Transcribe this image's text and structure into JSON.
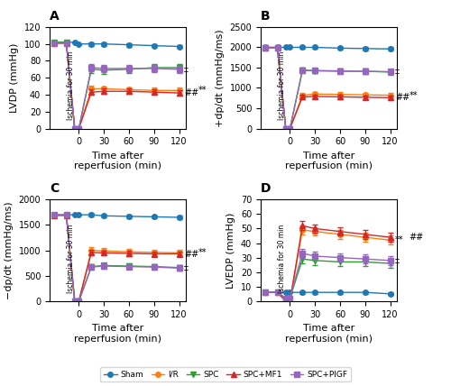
{
  "chart_data": [
    {
      "type": "line",
      "title": "A",
      "ylabel": "LVDP (mmHg)",
      "xlabel": "Time after\nreperfusion (min)",
      "x": [
        -30,
        -15,
        -5,
        0,
        15,
        30,
        60,
        90,
        120
      ],
      "xlim": [
        -35,
        128
      ],
      "xticks": [
        0,
        30,
        60,
        90,
        120
      ],
      "ylim": [
        0,
        120
      ],
      "yticks": [
        0,
        20,
        40,
        60,
        80,
        100,
        120
      ],
      "legend": "lower center",
      "series": [
        {
          "name": "Sham",
          "marker": "circle",
          "values": [
            102,
            102,
            102,
            100,
            100,
            100,
            99,
            98,
            97
          ],
          "errors": [
            null,
            null,
            null,
            null,
            2,
            2,
            2,
            2,
            2
          ]
        },
        {
          "name": "I/R",
          "marker": "circle",
          "values": [
            101,
            101,
            0,
            0,
            47,
            47,
            46,
            45,
            45
          ],
          "errors": [
            null,
            null,
            null,
            null,
            4,
            3,
            3,
            3,
            3
          ]
        },
        {
          "name": "SPC",
          "marker": "triangle_down",
          "values": [
            102,
            102,
            0,
            0,
            70,
            69,
            70,
            72,
            72
          ],
          "errors": [
            null,
            null,
            null,
            null,
            4,
            4,
            4,
            4,
            4
          ]
        },
        {
          "name": "SPC+MF1",
          "marker": "triangle_up",
          "values": [
            101,
            101,
            0,
            0,
            43,
            44,
            44,
            43,
            42
          ],
          "errors": [
            null,
            null,
            null,
            null,
            3,
            3,
            3,
            3,
            3
          ]
        },
        {
          "name": "SPC+PIGF",
          "marker": "square",
          "values": [
            101,
            101,
            0,
            0,
            72,
            71,
            71,
            71,
            70
          ],
          "errors": [
            null,
            null,
            null,
            null,
            4,
            4,
            4,
            4,
            4
          ]
        }
      ],
      "annotations": [
        {
          "text": "‡",
          "series": "SPC+PIGF"
        },
        {
          "text": "**",
          "series": "I/R"
        },
        {
          "text": "##",
          "series": "SPC+MF1"
        },
        {
          "text": "Ischemia for 30 min"
        }
      ]
    },
    {
      "type": "line",
      "title": "B",
      "ylabel": "+dp/dt (mmHg/ms)",
      "xlabel": "Time after\nreperfusion (min)",
      "x": [
        -30,
        -15,
        -5,
        0,
        15,
        30,
        60,
        90,
        120
      ],
      "xlim": [
        -35,
        128
      ],
      "xticks": [
        0,
        30,
        60,
        90,
        120
      ],
      "ylim": [
        0,
        2500
      ],
      "yticks": [
        0,
        500,
        1000,
        1500,
        2000,
        2500
      ],
      "legend": "lower center",
      "series": [
        {
          "name": "Sham",
          "marker": "circle",
          "values": [
            2000,
            2000,
            2000,
            2000,
            2000,
            2000,
            1980,
            1970,
            1960
          ],
          "errors": [
            null,
            null,
            null,
            null,
            40,
            40,
            40,
            40,
            40
          ]
        },
        {
          "name": "I/R",
          "marker": "circle",
          "values": [
            2000,
            2000,
            0,
            0,
            820,
            850,
            840,
            830,
            820
          ],
          "errors": [
            null,
            null,
            null,
            null,
            50,
            50,
            50,
            50,
            50
          ]
        },
        {
          "name": "SPC",
          "marker": "triangle_down",
          "values": [
            1990,
            1990,
            0,
            0,
            1430,
            1420,
            1410,
            1410,
            1390
          ],
          "errors": [
            null,
            null,
            null,
            null,
            60,
            60,
            60,
            60,
            60
          ]
        },
        {
          "name": "SPC+MF1",
          "marker": "triangle_up",
          "values": [
            1990,
            1990,
            0,
            0,
            780,
            790,
            780,
            770,
            760
          ],
          "errors": [
            null,
            null,
            null,
            null,
            50,
            50,
            50,
            50,
            50
          ]
        },
        {
          "name": "SPC+PIGF",
          "marker": "square",
          "values": [
            1990,
            1990,
            0,
            0,
            1440,
            1430,
            1420,
            1410,
            1400
          ],
          "errors": [
            null,
            null,
            null,
            null,
            60,
            60,
            60,
            60,
            60
          ]
        }
      ],
      "annotations": [
        {
          "text": "‡",
          "series": "SPC+PIGF"
        },
        {
          "text": "**",
          "series": "I/R"
        },
        {
          "text": "##",
          "series": "SPC+MF1"
        },
        {
          "text": "Ischemia for 30 min"
        }
      ]
    },
    {
      "type": "line",
      "title": "C",
      "ylabel": "−dp/dt (mmHg/ms)",
      "xlabel": "Time after\nreperfusion (min)",
      "x": [
        -30,
        -15,
        -5,
        0,
        15,
        30,
        60,
        90,
        120
      ],
      "xlim": [
        -35,
        128
      ],
      "xticks": [
        0,
        30,
        60,
        90,
        120
      ],
      "ylim": [
        0,
        2000
      ],
      "yticks": [
        0,
        500,
        1000,
        1500,
        2000
      ],
      "legend": "lower center",
      "series": [
        {
          "name": "Sham",
          "marker": "circle",
          "values": [
            1700,
            1700,
            1700,
            1700,
            1700,
            1680,
            1670,
            1660,
            1650
          ],
          "errors": [
            null,
            null,
            null,
            null,
            30,
            30,
            30,
            30,
            30
          ]
        },
        {
          "name": "I/R",
          "marker": "circle",
          "values": [
            1700,
            1700,
            0,
            0,
            1000,
            990,
            970,
            960,
            950
          ],
          "errors": [
            null,
            null,
            null,
            null,
            55,
            55,
            55,
            55,
            55
          ]
        },
        {
          "name": "SPC",
          "marker": "triangle_down",
          "values": [
            1690,
            1690,
            0,
            0,
            680,
            700,
            690,
            680,
            660
          ],
          "errors": [
            null,
            null,
            null,
            null,
            50,
            50,
            50,
            50,
            50
          ]
        },
        {
          "name": "SPC+MF1",
          "marker": "triangle_up",
          "values": [
            1690,
            1690,
            0,
            0,
            960,
            950,
            940,
            930,
            930
          ],
          "errors": [
            null,
            null,
            null,
            null,
            50,
            50,
            50,
            50,
            50
          ]
        },
        {
          "name": "SPC+PIGF",
          "marker": "square",
          "values": [
            1700,
            1700,
            0,
            0,
            670,
            690,
            680,
            670,
            650
          ],
          "errors": [
            null,
            null,
            null,
            null,
            50,
            50,
            50,
            50,
            50
          ]
        }
      ],
      "annotations": [
        {
          "text": "**",
          "series": "I/R"
        },
        {
          "text": "##",
          "series": "SPC+MF1"
        },
        {
          "text": "‡",
          "series": "SPC+PIGF"
        },
        {
          "text": "Ischemia for 30 min"
        }
      ]
    },
    {
      "type": "line",
      "title": "D",
      "ylabel": "LVEDP (mmHg)",
      "xlabel": "Time after\nreperfusion (min)",
      "x": [
        -30,
        -15,
        -5,
        0,
        15,
        30,
        60,
        90,
        120
      ],
      "xlim": [
        -35,
        128
      ],
      "xticks": [
        0,
        30,
        60,
        90,
        120
      ],
      "ylim": [
        0,
        70
      ],
      "yticks": [
        0,
        10,
        20,
        30,
        40,
        50,
        60,
        70
      ],
      "legend": "lower center",
      "series": [
        {
          "name": "Sham",
          "marker": "circle",
          "values": [
            6,
            6,
            6,
            6,
            6,
            6,
            6,
            6,
            5
          ],
          "errors": [
            null,
            null,
            null,
            null,
            1,
            1,
            1,
            1,
            1
          ]
        },
        {
          "name": "I/R",
          "marker": "circle",
          "values": [
            6,
            6,
            0,
            0,
            49,
            48,
            46,
            44,
            42
          ],
          "errors": [
            null,
            null,
            null,
            null,
            3,
            3,
            3,
            3,
            3
          ]
        },
        {
          "name": "SPC",
          "marker": "triangle_down",
          "values": [
            6,
            6,
            2,
            2,
            29,
            28,
            27,
            27,
            26
          ],
          "errors": [
            null,
            null,
            null,
            null,
            3,
            3,
            3,
            3,
            3
          ]
        },
        {
          "name": "SPC+MF1",
          "marker": "triangle_up",
          "values": [
            6,
            6,
            0,
            0,
            52,
            50,
            48,
            46,
            44
          ],
          "errors": [
            null,
            null,
            null,
            null,
            3,
            3,
            3,
            3,
            3
          ]
        },
        {
          "name": "SPC+PIGF",
          "marker": "square",
          "values": [
            6,
            6,
            2,
            2,
            33,
            31,
            30,
            29,
            28
          ],
          "errors": [
            null,
            null,
            null,
            null,
            3,
            3,
            3,
            3,
            3
          ]
        }
      ],
      "annotations": [
        {
          "text": "##",
          "series": "SPC+MF1"
        },
        {
          "text": "**",
          "series": "I/R"
        },
        {
          "text": "‡",
          "series": "SPC+PIGF"
        },
        {
          "text": "Ischemia for 30 min"
        }
      ]
    }
  ]
}
